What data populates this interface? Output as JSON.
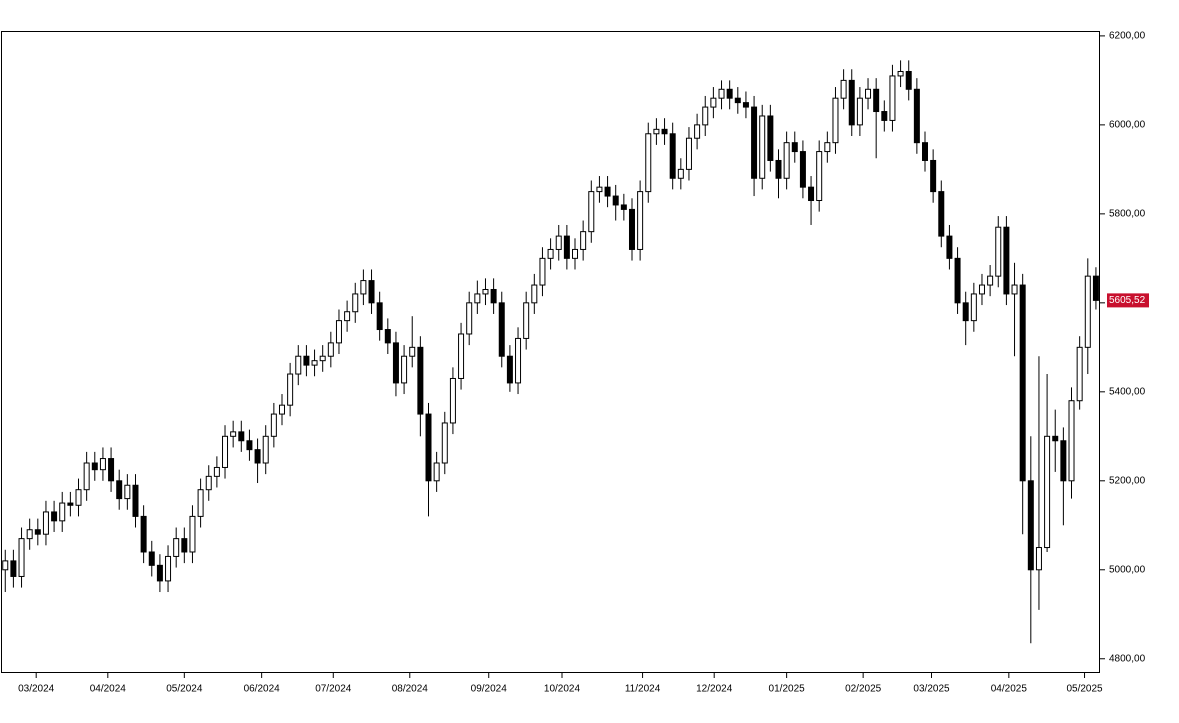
{
  "chart_data": {
    "type": "candlestick",
    "categories": [
      null,
      null,
      null,
      null,
      null,
      null,
      null,
      null,
      null,
      null,
      null,
      null,
      null,
      null,
      null,
      null,
      null,
      null,
      null,
      null,
      null,
      null,
      null,
      null,
      null,
      null,
      null,
      null,
      null,
      null,
      null,
      null,
      null,
      null,
      null,
      null,
      null,
      null,
      null,
      null,
      null,
      null,
      null,
      null,
      null,
      null,
      null,
      null,
      null,
      null,
      null,
      null,
      null,
      null,
      null,
      null,
      null,
      null,
      null,
      null,
      null,
      null,
      null,
      null,
      null,
      null,
      null,
      null,
      null,
      null,
      null,
      null,
      null,
      null,
      null,
      null,
      null,
      null,
      null,
      null,
      null,
      null,
      null,
      null,
      null,
      null,
      null,
      null,
      null,
      null,
      null,
      null,
      null,
      null,
      null,
      null,
      null,
      null,
      null,
      null,
      null,
      null,
      null,
      null,
      null,
      null,
      null,
      null,
      null,
      null,
      null,
      null,
      null,
      null,
      null,
      null,
      null,
      null,
      null,
      null,
      null,
      null,
      null,
      null,
      null,
      null,
      null,
      null,
      null,
      null,
      null,
      null,
      null,
      null,
      null
    ],
    "open": [
      5000,
      5020,
      4985,
      5070,
      5090,
      5080,
      5130,
      5110,
      5150,
      5145,
      5180,
      5240,
      5225,
      5250,
      5200,
      5160,
      5190,
      5120,
      5040,
      5010,
      4975,
      5030,
      5070,
      5040,
      5120,
      5180,
      5210,
      5230,
      5300,
      5310,
      5290,
      5270,
      5240,
      5300,
      5350,
      5370,
      5440,
      5480,
      5460,
      5470,
      5480,
      5510,
      5560,
      5580,
      5620,
      5650,
      5600,
      5540,
      5510,
      5420,
      5480,
      5500,
      5350,
      5200,
      5240,
      5330,
      5430,
      5530,
      5600,
      5620,
      5630,
      5600,
      5480,
      5420,
      5520,
      5600,
      5640,
      5700,
      5720,
      5750,
      5700,
      5720,
      5760,
      5850,
      5860,
      5840,
      5820,
      5810,
      5720,
      5850,
      5980,
      5990,
      5980,
      5880,
      5900,
      5970,
      6000,
      6040,
      6060,
      6080,
      6060,
      6050,
      6040,
      5880,
      6020,
      5920,
      5880,
      5960,
      5940,
      5860,
      5830,
      5940,
      5960,
      6060,
      6100,
      6000,
      6060,
      6080,
      6030,
      6010,
      6110,
      6120,
      6080,
      5960,
      5920,
      5850,
      5750,
      5700,
      5600,
      5560,
      5620,
      5640,
      5660,
      5770,
      5620,
      5640,
      5200,
      5000,
      5050,
      5300,
      5290,
      5200,
      5380,
      5500,
      5660
    ],
    "high": [
      5045,
      5045,
      5095,
      5115,
      5115,
      5155,
      5155,
      5175,
      5175,
      5205,
      5265,
      5265,
      5275,
      5275,
      5225,
      5215,
      5215,
      5145,
      5065,
      5035,
      5055,
      5095,
      5095,
      5145,
      5205,
      5235,
      5255,
      5325,
      5335,
      5335,
      5315,
      5295,
      5325,
      5375,
      5395,
      5465,
      5505,
      5505,
      5495,
      5505,
      5535,
      5585,
      5605,
      5645,
      5675,
      5675,
      5625,
      5565,
      5535,
      5505,
      5570,
      5525,
      5375,
      5265,
      5355,
      5455,
      5555,
      5625,
      5650,
      5655,
      5655,
      5625,
      5505,
      5545,
      5625,
      5665,
      5725,
      5745,
      5775,
      5775,
      5745,
      5785,
      5875,
      5885,
      5885,
      5865,
      5845,
      5835,
      5875,
      6005,
      6015,
      6015,
      6005,
      5925,
      5995,
      6025,
      6065,
      6085,
      6100,
      6100,
      6085,
      6075,
      6065,
      6045,
      6045,
      5945,
      5985,
      5985,
      5965,
      5885,
      5965,
      5985,
      6085,
      6125,
      6125,
      6085,
      6105,
      6105,
      6055,
      6135,
      6145,
      6145,
      6105,
      5985,
      5945,
      5875,
      5775,
      5725,
      5625,
      5645,
      5665,
      5685,
      5795,
      5795,
      5690,
      5665,
      5300,
      5480,
      5440,
      5360,
      5320,
      5410,
      5525,
      5700,
      5680
    ],
    "low": [
      4950,
      4960,
      4960,
      5045,
      5055,
      5055,
      5085,
      5085,
      5120,
      5120,
      5155,
      5200,
      5200,
      5175,
      5135,
      5135,
      5095,
      5015,
      4985,
      4950,
      4950,
      5005,
      5015,
      5015,
      5095,
      5155,
      5185,
      5205,
      5275,
      5265,
      5245,
      5195,
      5215,
      5275,
      5325,
      5345,
      5415,
      5435,
      5435,
      5445,
      5455,
      5485,
      5535,
      5555,
      5595,
      5575,
      5515,
      5485,
      5390,
      5395,
      5455,
      5300,
      5120,
      5175,
      5215,
      5305,
      5405,
      5505,
      5575,
      5595,
      5575,
      5455,
      5400,
      5395,
      5495,
      5575,
      5615,
      5675,
      5695,
      5675,
      5675,
      5695,
      5735,
      5825,
      5815,
      5785,
      5785,
      5695,
      5695,
      5825,
      5955,
      5955,
      5855,
      5855,
      5875,
      5945,
      5975,
      6015,
      6035,
      6035,
      6025,
      6015,
      5840,
      5855,
      5895,
      5835,
      5855,
      5915,
      5835,
      5775,
      5805,
      5915,
      5935,
      6035,
      5975,
      5975,
      6035,
      5925,
      5985,
      5985,
      6085,
      6055,
      5935,
      5895,
      5825,
      5725,
      5675,
      5575,
      5505,
      5535,
      5595,
      5615,
      5635,
      5595,
      5480,
      5080,
      4835,
      4910,
      5040,
      5220,
      5100,
      5160,
      5360,
      5440,
      5585
    ],
    "close": [
      5020,
      4985,
      5070,
      5090,
      5080,
      5130,
      5110,
      5150,
      5145,
      5180,
      5240,
      5225,
      5250,
      5200,
      5160,
      5190,
      5120,
      5040,
      5010,
      4975,
      5030,
      5070,
      5040,
      5120,
      5180,
      5210,
      5230,
      5300,
      5310,
      5290,
      5270,
      5240,
      5300,
      5350,
      5370,
      5440,
      5480,
      5460,
      5470,
      5480,
      5510,
      5560,
      5580,
      5620,
      5650,
      5600,
      5540,
      5510,
      5420,
      5480,
      5500,
      5350,
      5200,
      5240,
      5330,
      5430,
      5530,
      5600,
      5620,
      5630,
      5600,
      5480,
      5420,
      5520,
      5600,
      5640,
      5700,
      5720,
      5750,
      5700,
      5720,
      5760,
      5850,
      5860,
      5840,
      5820,
      5810,
      5720,
      5850,
      5980,
      5990,
      5980,
      5880,
      5900,
      5970,
      6000,
      6040,
      6060,
      6080,
      6060,
      6050,
      6040,
      5880,
      6020,
      5920,
      5880,
      5960,
      5940,
      5860,
      5830,
      5940,
      5960,
      6060,
      6100,
      6000,
      6060,
      6080,
      6030,
      6010,
      6110,
      6120,
      6080,
      5960,
      5920,
      5850,
      5750,
      5700,
      5600,
      5560,
      5620,
      5640,
      5660,
      5770,
      5620,
      5640,
      5200,
      5000,
      5050,
      5300,
      5290,
      5200,
      5380,
      5500,
      5660,
      5605.52
    ],
    "up_color": "#ffffff",
    "down_color": "#000000",
    "last_color": "#c8102e",
    "last_price": {
      "value": 5605.52,
      "label": "5605,52"
    },
    "ylim": [
      4768,
      6211
    ],
    "yticks": [
      {
        "value": 4800,
        "label": "4800,00"
      },
      {
        "value": 5000,
        "label": "5000,00"
      },
      {
        "value": 5200,
        "label": "5200,00"
      },
      {
        "value": 5400,
        "label": "5400,00"
      },
      {
        "value": 5600,
        "label": "5600,00"
      },
      {
        "value": 5800,
        "label": "5800,00"
      },
      {
        "value": 6000,
        "label": "6000,00"
      },
      {
        "value": 6200,
        "label": "6200,00"
      }
    ],
    "xlim": [
      -0.4,
      134.5
    ],
    "xticks": [
      {
        "value": 3.8,
        "label": "03/2024"
      },
      {
        "value": 12.6,
        "label": "04/2024"
      },
      {
        "value": 22.0,
        "label": "05/2024"
      },
      {
        "value": 31.5,
        "label": "06/2024"
      },
      {
        "value": 40.3,
        "label": "07/2024"
      },
      {
        "value": 49.7,
        "label": "08/2024"
      },
      {
        "value": 59.4,
        "label": "09/2024"
      },
      {
        "value": 68.4,
        "label": "10/2024"
      },
      {
        "value": 78.3,
        "label": "11/2024"
      },
      {
        "value": 87.1,
        "label": "12/2024"
      },
      {
        "value": 96.0,
        "label": "01/2025"
      },
      {
        "value": 105.4,
        "label": "02/2025"
      },
      {
        "value": 113.8,
        "label": "03/2025"
      },
      {
        "value": 123.3,
        "label": "04/2025"
      },
      {
        "value": 132.6,
        "label": "05/2025"
      }
    ]
  }
}
